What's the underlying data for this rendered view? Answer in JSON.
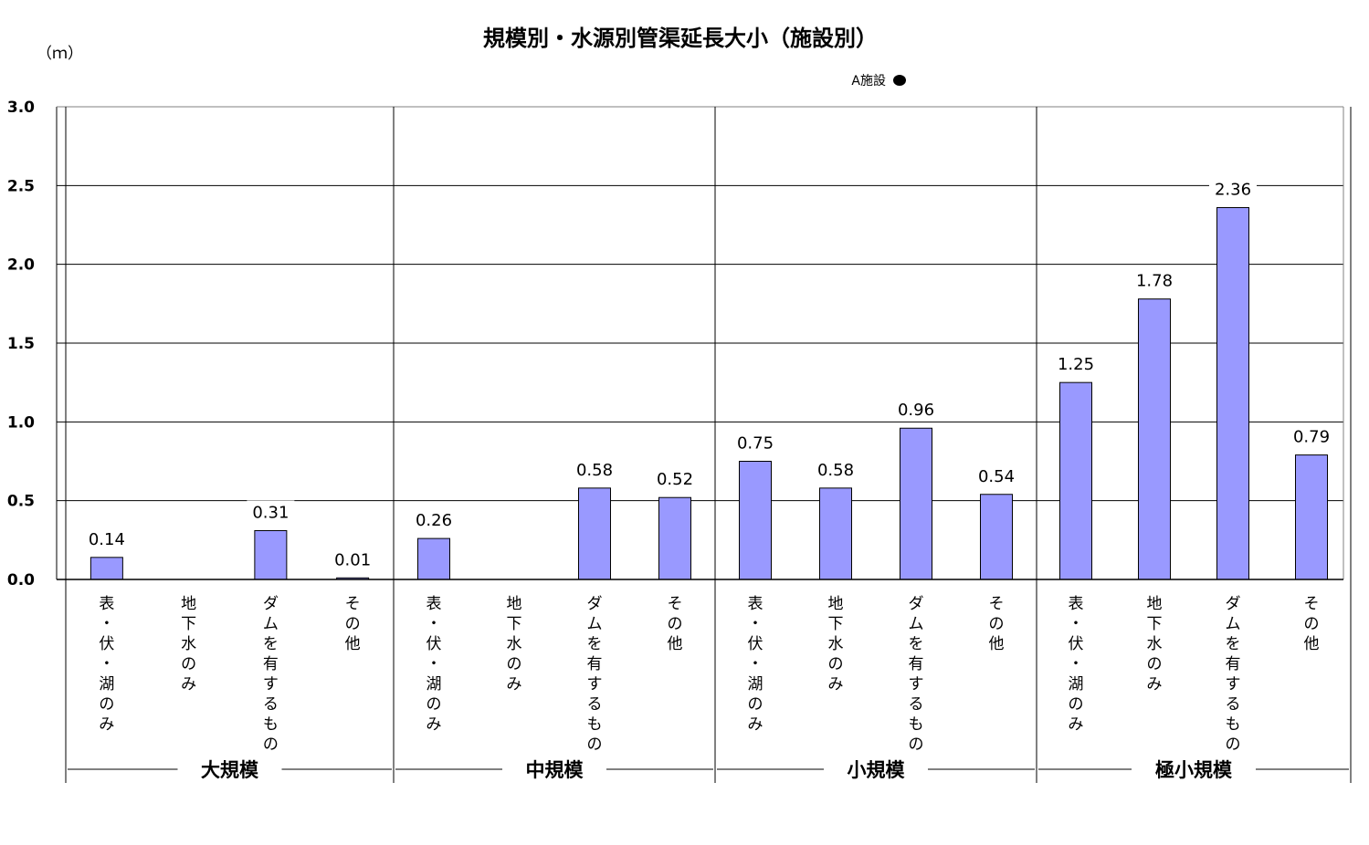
{
  "chart_data": {
    "type": "bar",
    "title": "規模別・水源別管渠延長大小（施設別）",
    "ylabel": "（ｍ）",
    "ylim": [
      0,
      3.0
    ],
    "yticks": [
      "0.0",
      "0.5",
      "1.0",
      "1.5",
      "2.0",
      "2.5",
      "3.0"
    ],
    "legend": {
      "label": "A施設",
      "position": "top-right"
    },
    "groups": [
      "大規模",
      "中規模",
      "小規模",
      "極小規模"
    ],
    "categories": [
      "表・伏・湖のみ",
      "地下水のみ",
      "ダムを有するもの",
      "その他"
    ],
    "series": [
      {
        "name": "A施設",
        "color": "#9999ff",
        "values": [
          [
            0.14,
            null,
            0.31,
            0.01
          ],
          [
            0.26,
            null,
            0.58,
            0.52
          ],
          [
            0.75,
            0.58,
            0.96,
            0.54
          ],
          [
            1.25,
            1.78,
            2.36,
            0.79
          ]
        ],
        "labels": [
          [
            "0.14",
            "",
            "0.31",
            "0.01"
          ],
          [
            "0.26",
            "",
            "0.58",
            "0.52"
          ],
          [
            "0.75",
            "0.58",
            "0.96",
            "0.54"
          ],
          [
            "1.25",
            "1.78",
            "2.36",
            "0.79"
          ]
        ]
      }
    ],
    "grid": true
  }
}
